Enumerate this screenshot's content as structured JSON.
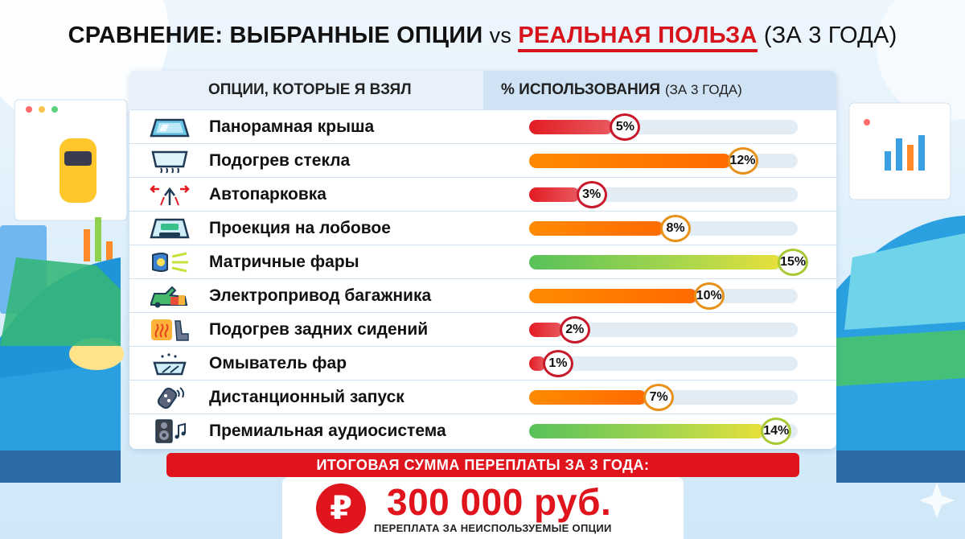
{
  "title": {
    "part1": "СРАВНЕНИЕ: ВЫБРАННЫЕ ОПЦИИ",
    "vs": "vs",
    "highlight": "РЕАЛЬНАЯ ПОЛЬЗА",
    "paren": "(ЗА 3 ГОДА)"
  },
  "table": {
    "col_options": "ОПЦИИ, КОТОРЫЕ Я ВЗЯЛ",
    "col_usage": "% ИСПОЛЬЗОВАНИЯ",
    "col_usage_sub": "(ЗА 3 ГОДА)"
  },
  "chart_data": {
    "type": "bar",
    "orientation": "horizontal",
    "xlim": [
      0,
      16
    ],
    "categories": [
      "Панорамная крыша",
      "Подогрев стекла",
      "Автопарковка",
      "Проекция на лобовое",
      "Матричные фары",
      "Электропривод багажника",
      "Подогрев задних сидений",
      "Омыватель фар",
      "Дистанционный запуск",
      "Премиальная аудиосистема"
    ],
    "values": [
      5,
      12,
      3,
      8,
      15,
      10,
      2,
      1,
      7,
      14
    ],
    "value_labels": [
      "5%",
      "12%",
      "3%",
      "8%",
      "15%",
      "10%",
      "2%",
      "1%",
      "7%",
      "14%"
    ],
    "colors": [
      "red",
      "orange",
      "red",
      "orange",
      "green",
      "orange",
      "red",
      "red",
      "orange",
      "green"
    ],
    "icons": [
      "panoramic-roof-icon",
      "windshield-heater-icon",
      "parking-assist-icon",
      "head-up-display-icon",
      "matrix-headlight-icon",
      "power-tailgate-icon",
      "heated-seat-icon",
      "headlight-washer-icon",
      "remote-key-icon",
      "audio-speaker-icon"
    ],
    "color_map": {
      "red": "#e31b23",
      "orange": "#ff7a00",
      "green": "#8ccf48"
    }
  },
  "summary": {
    "banner": "ИТОГОВАЯ СУММА ПЕРЕПЛАТЫ ЗА 3 ГОДА:",
    "currency_symbol": "₽",
    "amount": "300 000 руб.",
    "note": "ПЕРЕПЛАТА ЗА НЕИСПОЛЬЗУЕМЫЕ ОПЦИИ"
  }
}
